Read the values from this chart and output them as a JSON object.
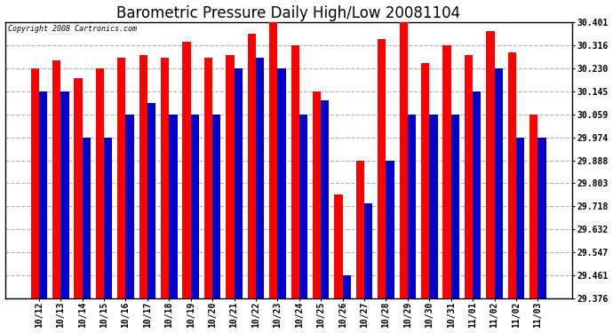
{
  "title": "Barometric Pressure Daily High/Low 20081104",
  "copyright": "Copyright 2008 Cartronics.com",
  "categories": [
    "10/12",
    "10/13",
    "10/14",
    "10/15",
    "10/16",
    "10/17",
    "10/18",
    "10/19",
    "10/20",
    "10/21",
    "10/22",
    "10/23",
    "10/24",
    "10/25",
    "10/26",
    "10/27",
    "10/28",
    "10/29",
    "10/30",
    "10/31",
    "11/01",
    "11/02",
    "11/02",
    "11/03"
  ],
  "high": [
    30.23,
    30.26,
    30.195,
    30.23,
    30.27,
    30.28,
    30.27,
    30.33,
    30.27,
    30.28,
    30.36,
    30.401,
    30.316,
    30.145,
    29.76,
    29.888,
    30.34,
    30.401,
    30.25,
    30.316,
    30.28,
    30.37,
    30.29,
    30.059
  ],
  "low": [
    30.145,
    30.145,
    29.974,
    29.974,
    30.059,
    30.1,
    30.059,
    30.059,
    30.059,
    30.23,
    30.27,
    30.23,
    30.059,
    30.11,
    29.461,
    29.73,
    29.888,
    30.059,
    30.059,
    30.059,
    30.145,
    30.23,
    29.974,
    29.974
  ],
  "ymin": 29.376,
  "ymax": 30.401,
  "yticks": [
    30.401,
    30.316,
    30.23,
    30.145,
    30.059,
    29.974,
    29.888,
    29.803,
    29.718,
    29.632,
    29.547,
    29.461,
    29.376
  ],
  "high_color": "#FF0000",
  "low_color": "#0000CC",
  "background_color": "#FFFFFF",
  "plot_bg_color": "#FFFFFF",
  "grid_color": "#B0B0B0",
  "title_fontsize": 12,
  "tick_fontsize": 7,
  "bar_width": 0.38
}
